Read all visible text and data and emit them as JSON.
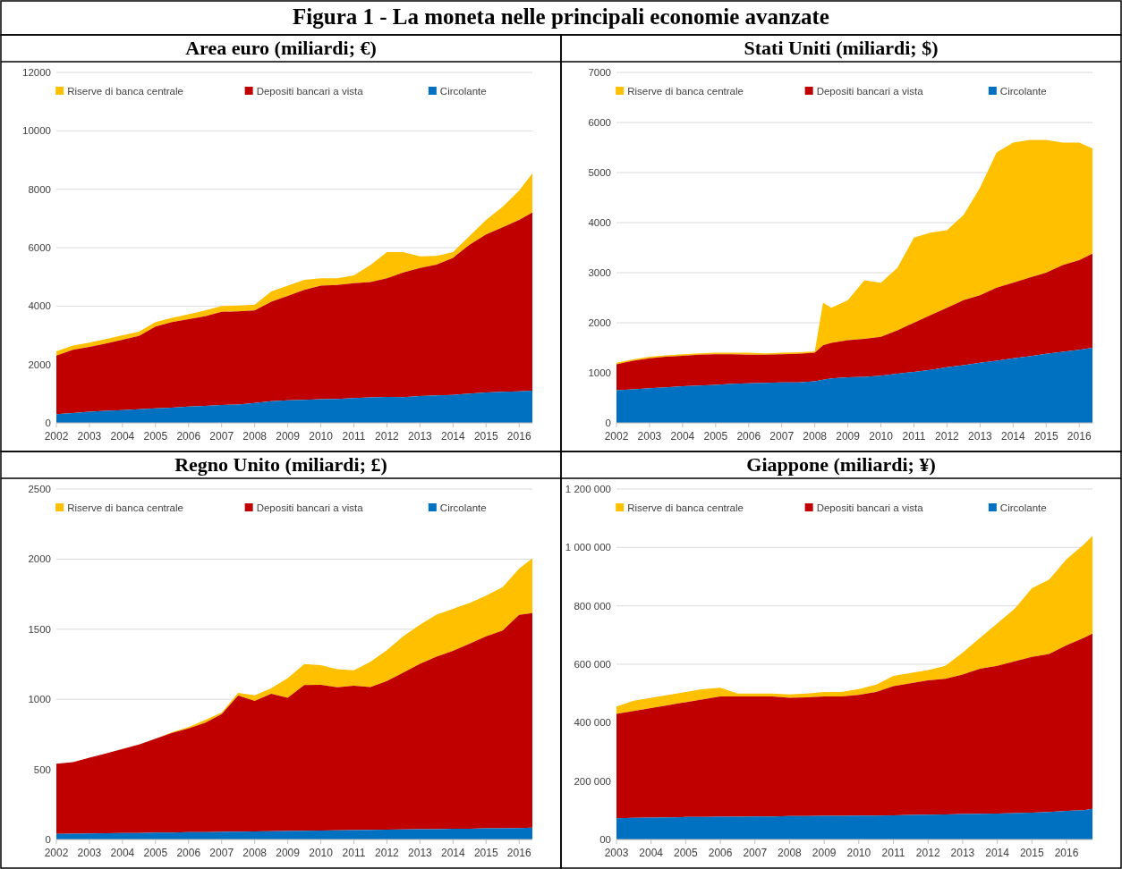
{
  "chart_data": [
    {
      "type": "area",
      "title": "Figura 1 - La moneta nelle principali economie avanzate",
      "subtitle": "Area euro (miliardi; €)",
      "stacked": true,
      "grid": "y",
      "legend": "top",
      "x": [
        2002,
        2002.5,
        2003,
        2003.5,
        2004,
        2004.5,
        2005,
        2005.5,
        2006,
        2006.5,
        2007,
        2007.5,
        2008,
        2008.5,
        2009,
        2009.5,
        2010,
        2010.5,
        2011,
        2011.5,
        2012,
        2012.5,
        2013,
        2013.5,
        2014,
        2014.5,
        2015,
        2015.5,
        2016,
        2016.4
      ],
      "xlim": [
        2002,
        2016.4
      ],
      "xticks": [
        2002,
        2003,
        2004,
        2005,
        2006,
        2007,
        2008,
        2009,
        2010,
        2011,
        2012,
        2013,
        2014,
        2015,
        2016
      ],
      "ylim": [
        0,
        12000
      ],
      "yticks": [
        0,
        2000,
        4000,
        6000,
        8000,
        10000,
        12000
      ],
      "series": [
        {
          "name": "Circolante",
          "color": "#0070c0",
          "values": [
            300,
            340,
            380,
            410,
            440,
            470,
            500,
            520,
            560,
            580,
            610,
            630,
            680,
            740,
            770,
            790,
            810,
            820,
            850,
            870,
            890,
            880,
            920,
            940,
            960,
            1000,
            1040,
            1060,
            1080,
            1100
          ]
        },
        {
          "name": "Depositi bancari a vista",
          "color": "#c00000",
          "values": [
            2000,
            2160,
            2220,
            2310,
            2410,
            2510,
            2800,
            2930,
            2990,
            3070,
            3190,
            3190,
            3170,
            3410,
            3580,
            3760,
            3890,
            3900,
            3930,
            3950,
            4060,
            4270,
            4380,
            4480,
            4690,
            5100,
            5410,
            5640,
            5870,
            6100
          ]
        },
        {
          "name": "Riserve di banca centrale",
          "color": "#ffc000",
          "values": [
            150,
            150,
            150,
            150,
            150,
            140,
            150,
            150,
            170,
            200,
            200,
            200,
            200,
            350,
            350,
            350,
            250,
            230,
            270,
            580,
            900,
            700,
            400,
            300,
            200,
            300,
            500,
            700,
            1000,
            1350
          ]
        }
      ]
    },
    {
      "type": "area",
      "subtitle": "Stati Uniti (miliardi; $)",
      "stacked": true,
      "grid": "y",
      "legend": "top",
      "x": [
        2002,
        2002.5,
        2003,
        2003.5,
        2004,
        2004.5,
        2005,
        2005.5,
        2006,
        2006.5,
        2007,
        2007.5,
        2008,
        2008.25,
        2008.5,
        2009,
        2009.5,
        2010,
        2010.5,
        2011,
        2011.5,
        2012,
        2012.5,
        2013,
        2013.5,
        2014,
        2014.5,
        2015,
        2015.5,
        2016,
        2016.4
      ],
      "xlim": [
        2002,
        2016.4
      ],
      "xticks": [
        2002,
        2003,
        2004,
        2005,
        2006,
        2007,
        2008,
        2009,
        2010,
        2011,
        2012,
        2013,
        2014,
        2015,
        2016
      ],
      "ylim": [
        0,
        7000
      ],
      "yticks": [
        0,
        1000,
        2000,
        3000,
        4000,
        5000,
        6000,
        7000
      ],
      "series": [
        {
          "name": "Circolante",
          "color": "#0070c0",
          "values": [
            650,
            670,
            690,
            710,
            730,
            745,
            760,
            780,
            790,
            800,
            810,
            810,
            830,
            860,
            890,
            910,
            920,
            940,
            980,
            1020,
            1060,
            1110,
            1150,
            1200,
            1240,
            1290,
            1330,
            1380,
            1420,
            1460,
            1500
          ]
        },
        {
          "name": "Depositi bancari a vista",
          "color": "#c00000",
          "values": [
            520,
            570,
            600,
            610,
            610,
            615,
            610,
            590,
            570,
            560,
            560,
            570,
            570,
            690,
            710,
            740,
            760,
            780,
            870,
            980,
            1090,
            1190,
            1300,
            1350,
            1460,
            1510,
            1570,
            1620,
            1730,
            1790,
            1880
          ]
        },
        {
          "name": "Riserve di banca centrale",
          "color": "#ffc000",
          "values": [
            30,
            30,
            30,
            30,
            30,
            30,
            30,
            30,
            40,
            30,
            30,
            30,
            30,
            850,
            700,
            800,
            1170,
            1080,
            1250,
            1700,
            1650,
            1550,
            1700,
            2150,
            2700,
            2800,
            2750,
            2650,
            2450,
            2350,
            2100
          ]
        }
      ]
    },
    {
      "type": "area",
      "subtitle": "Regno Unito (miliardi; £)",
      "stacked": true,
      "grid": "y",
      "legend": "top",
      "x": [
        2002,
        2002.5,
        2003,
        2003.5,
        2004,
        2004.5,
        2005,
        2005.5,
        2006,
        2006.5,
        2007,
        2007.5,
        2008,
        2008.5,
        2009,
        2009.5,
        2010,
        2010.5,
        2011,
        2011.5,
        2012,
        2012.5,
        2013,
        2013.5,
        2014,
        2014.5,
        2015,
        2015.5,
        2016,
        2016.4
      ],
      "xlim": [
        2002,
        2016.4
      ],
      "xticks": [
        2002,
        2003,
        2004,
        2005,
        2006,
        2007,
        2008,
        2009,
        2010,
        2011,
        2012,
        2013,
        2014,
        2015,
        2016
      ],
      "ylim": [
        0,
        2500
      ],
      "yticks": [
        0,
        500,
        1000,
        1500,
        2000,
        2500
      ],
      "series": [
        {
          "name": "Circolante",
          "color": "#0070c0",
          "values": [
            40,
            41,
            43,
            44,
            46,
            47,
            49,
            50,
            52,
            53,
            55,
            56,
            58,
            59,
            61,
            62,
            64,
            65,
            67,
            68,
            70,
            71,
            73,
            74,
            76,
            77,
            79,
            80,
            82,
            85
          ]
        },
        {
          "name": "Depositi bancari a vista",
          "color": "#c00000",
          "values": [
            500,
            510,
            540,
            570,
            600,
            630,
            670,
            710,
            740,
            780,
            840,
            970,
            930,
            980,
            950,
            1040,
            1040,
            1020,
            1030,
            1020,
            1060,
            1120,
            1180,
            1230,
            1270,
            1320,
            1370,
            1410,
            1520,
            1530
          ]
        },
        {
          "name": "Riserve di banca centrale",
          "color": "#ffc000",
          "values": [
            0,
            0,
            0,
            0,
            0,
            0,
            0,
            5,
            10,
            20,
            10,
            20,
            40,
            40,
            140,
            150,
            140,
            130,
            110,
            180,
            220,
            260,
            280,
            300,
            300,
            290,
            290,
            310,
            330,
            390
          ]
        }
      ]
    },
    {
      "type": "area",
      "subtitle": "Giappone (miliardi; ¥)",
      "stacked": true,
      "grid": "y",
      "legend": "top",
      "x": [
        2003,
        2003.5,
        2004,
        2004.5,
        2005,
        2005.5,
        2006,
        2006.5,
        2007,
        2007.5,
        2008,
        2008.5,
        2009,
        2009.5,
        2010,
        2010.5,
        2011,
        2011.5,
        2012,
        2012.5,
        2013,
        2013.5,
        2014,
        2014.5,
        2015,
        2015.5,
        2016,
        2016.5,
        2016.75
      ],
      "xlim": [
        2003,
        2016.75
      ],
      "xticks": [
        2003,
        2004,
        2005,
        2006,
        2007,
        2008,
        2009,
        2010,
        2011,
        2012,
        2013,
        2014,
        2015,
        2016
      ],
      "ylim": [
        0,
        1200000
      ],
      "yticks": [
        {
          "value": 0,
          "label": "00"
        },
        {
          "value": 200000,
          "label": "200 000"
        },
        {
          "value": 400000,
          "label": "400 000"
        },
        {
          "value": 600000,
          "label": "600 000"
        },
        {
          "value": 800000,
          "label": "800 000"
        },
        {
          "value": 1000000,
          "label": "1 000 000"
        },
        {
          "value": 1200000,
          "label": "1 200 000"
        }
      ],
      "series": [
        {
          "name": "Circolante",
          "color": "#0070c0",
          "values": [
            73000,
            74000,
            75000,
            76000,
            77000,
            77000,
            78000,
            78000,
            79000,
            79000,
            80000,
            80000,
            81000,
            81000,
            82000,
            82000,
            83000,
            84000,
            85000,
            86000,
            87000,
            88000,
            89000,
            90000,
            92000,
            94000,
            98000,
            100000,
            105000
          ]
        },
        {
          "name": "Depositi bancari a vista",
          "color": "#c00000",
          "values": [
            357000,
            366000,
            375000,
            384000,
            393000,
            403000,
            412000,
            412000,
            411000,
            411000,
            405000,
            407000,
            409000,
            409000,
            413000,
            423000,
            442000,
            451000,
            460000,
            464000,
            478000,
            497000,
            506000,
            520000,
            533000,
            541000,
            567000,
            590000,
            600000
          ]
        },
        {
          "name": "Riserve di banca centrale",
          "color": "#ffc000",
          "values": [
            25000,
            35000,
            35000,
            35000,
            35000,
            35000,
            30000,
            10000,
            10000,
            10000,
            12000,
            13000,
            15000,
            15000,
            20000,
            25000,
            35000,
            35000,
            35000,
            45000,
            75000,
            105000,
            145000,
            180000,
            235000,
            255000,
            295000,
            320000,
            335000
          ]
        }
      ]
    }
  ]
}
